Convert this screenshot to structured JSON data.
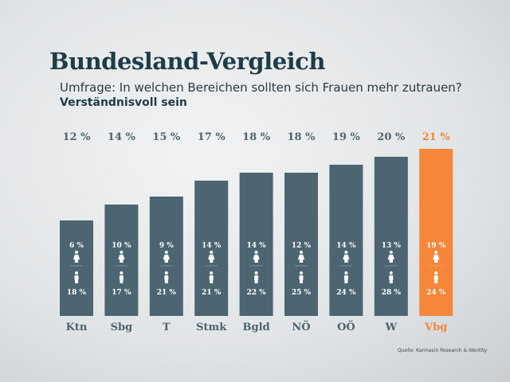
{
  "title": "Bundesland-Vergleich",
  "subtitle": "Umfrage: In welchen Bereichen sollten sich Frauen mehr zutrauen?",
  "subtitle2": "Verständnisvoll sein",
  "source": "Quelle: Karmasin Research & Identity",
  "chart_data": {
    "type": "bar",
    "categories": [
      "Ktn",
      "Sbg",
      "T",
      "Stmk",
      "Bgld",
      "NÖ",
      "OÖ",
      "W",
      "Vbg"
    ],
    "values": [
      12,
      14,
      15,
      17,
      18,
      18,
      19,
      20,
      21
    ],
    "value_labels": [
      "12 %",
      "14 %",
      "15 %",
      "17 %",
      "18 %",
      "18 %",
      "19 %",
      "20 %",
      "21 %"
    ],
    "female_labels": [
      "6 %",
      "10 %",
      "9 %",
      "14 %",
      "14 %",
      "12 %",
      "14 %",
      "13 %",
      "19 %"
    ],
    "male_labels": [
      "18 %",
      "17 %",
      "21 %",
      "21 %",
      "22 %",
      "25 %",
      "24 %",
      "28 %",
      "24 %"
    ],
    "female_values": [
      6,
      10,
      9,
      14,
      14,
      12,
      14,
      13,
      19
    ],
    "male_values": [
      18,
      17,
      21,
      21,
      22,
      25,
      24,
      28,
      24
    ],
    "highlight": "Vbg",
    "colors": {
      "bar": "#4c6570",
      "highlight": "#f5863a",
      "label": "#4c6570",
      "title": "#1f3c47"
    },
    "icons": [
      "female-icon",
      "male-icon"
    ]
  }
}
